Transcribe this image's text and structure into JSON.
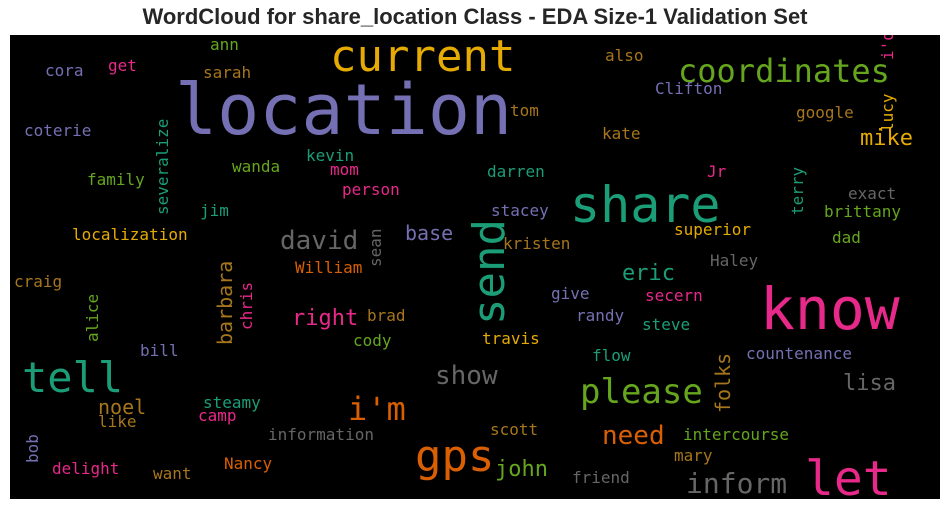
{
  "chart_data": {
    "type": "wordcloud",
    "title": "WordCloud for share_location Class - EDA Size-1 Validation Set",
    "words": [
      {
        "text": "location",
        "color": "#7570b3"
      },
      {
        "text": "current",
        "color": "#e6ab02"
      },
      {
        "text": "coordinates",
        "color": "#66a61e"
      },
      {
        "text": "share",
        "color": "#1b9e77"
      },
      {
        "text": "know",
        "color": "#e7298a"
      },
      {
        "text": "let",
        "color": "#e7298a"
      },
      {
        "text": "tell",
        "color": "#1b9e77"
      },
      {
        "text": "send",
        "color": "#1b9e77"
      },
      {
        "text": "gps",
        "color": "#d95f02"
      },
      {
        "text": "please",
        "color": "#66a61e"
      },
      {
        "text": "i'm",
        "color": "#d95f02"
      },
      {
        "text": "inform",
        "color": "#666666"
      },
      {
        "text": "show",
        "color": "#666666"
      },
      {
        "text": "need",
        "color": "#d95f02"
      },
      {
        "text": "david",
        "color": "#666666"
      },
      {
        "text": "barbara",
        "color": "#a6761d"
      },
      {
        "text": "john",
        "color": "#66a61e"
      },
      {
        "text": "eric",
        "color": "#1b9e77"
      },
      {
        "text": "mike",
        "color": "#e6ab02"
      },
      {
        "text": "lisa",
        "color": "#666666"
      },
      {
        "text": "noel",
        "color": "#a6761d"
      },
      {
        "text": "folks",
        "color": "#a6761d"
      },
      {
        "text": "right",
        "color": "#e7298a"
      },
      {
        "text": "base",
        "color": "#7570b3"
      },
      {
        "text": "ann",
        "color": "#66a61e"
      },
      {
        "text": "cora",
        "color": "#7570b3"
      },
      {
        "text": "get",
        "color": "#e7298a"
      },
      {
        "text": "sarah",
        "color": "#a6761d"
      },
      {
        "text": "also",
        "color": "#a6761d"
      },
      {
        "text": "i'd",
        "color": "#e7298a"
      },
      {
        "text": "lucy",
        "color": "#e6ab02"
      },
      {
        "text": "Clifton",
        "color": "#7570b3"
      },
      {
        "text": "tom",
        "color": "#a6761d"
      },
      {
        "text": "google",
        "color": "#a6761d"
      },
      {
        "text": "coterie",
        "color": "#7570b3"
      },
      {
        "text": "severalize",
        "color": "#1b9e77"
      },
      {
        "text": "kate",
        "color": "#a6761d"
      },
      {
        "text": "kevin",
        "color": "#1b9e77"
      },
      {
        "text": "wanda",
        "color": "#66a61e"
      },
      {
        "text": "mom",
        "color": "#e7298a"
      },
      {
        "text": "family",
        "color": "#66a61e"
      },
      {
        "text": "darren",
        "color": "#1b9e77"
      },
      {
        "text": "Jr",
        "color": "#e7298a"
      },
      {
        "text": "person",
        "color": "#e7298a"
      },
      {
        "text": "terry",
        "color": "#1b9e77"
      },
      {
        "text": "exact",
        "color": "#666666"
      },
      {
        "text": "jim",
        "color": "#1b9e77"
      },
      {
        "text": "sean",
        "color": "#666666"
      },
      {
        "text": "stacey",
        "color": "#7570b3"
      },
      {
        "text": "brittany",
        "color": "#66a61e"
      },
      {
        "text": "localization",
        "color": "#e6ab02"
      },
      {
        "text": "superior",
        "color": "#e6ab02"
      },
      {
        "text": "dad",
        "color": "#66a61e"
      },
      {
        "text": "kristen",
        "color": "#a6761d"
      },
      {
        "text": "William",
        "color": "#d95f02"
      },
      {
        "text": "Haley",
        "color": "#666666"
      },
      {
        "text": "craig",
        "color": "#a6761d"
      },
      {
        "text": "chris",
        "color": "#e7298a"
      },
      {
        "text": "give",
        "color": "#7570b3"
      },
      {
        "text": "secern",
        "color": "#e7298a"
      },
      {
        "text": "alice",
        "color": "#66a61e"
      },
      {
        "text": "brad",
        "color": "#a6761d"
      },
      {
        "text": "randy",
        "color": "#7570b3"
      },
      {
        "text": "steve",
        "color": "#1b9e77"
      },
      {
        "text": "travis",
        "color": "#e6ab02"
      },
      {
        "text": "bill",
        "color": "#7570b3"
      },
      {
        "text": "cody",
        "color": "#66a61e"
      },
      {
        "text": "countenance",
        "color": "#7570b3"
      },
      {
        "text": "flow",
        "color": "#1b9e77"
      },
      {
        "text": "steamy",
        "color": "#1b9e77"
      },
      {
        "text": "camp",
        "color": "#e7298a"
      },
      {
        "text": "like",
        "color": "#a6761d"
      },
      {
        "text": "information",
        "color": "#666666"
      },
      {
        "text": "scott",
        "color": "#a6761d"
      },
      {
        "text": "intercourse",
        "color": "#66a61e"
      },
      {
        "text": "bob",
        "color": "#7570b3"
      },
      {
        "text": "mary",
        "color": "#a6761d"
      },
      {
        "text": "delight",
        "color": "#e7298a"
      },
      {
        "text": "want",
        "color": "#a6761d"
      },
      {
        "text": "Nancy",
        "color": "#d95f02"
      },
      {
        "text": "friend",
        "color": "#666666"
      }
    ]
  }
}
